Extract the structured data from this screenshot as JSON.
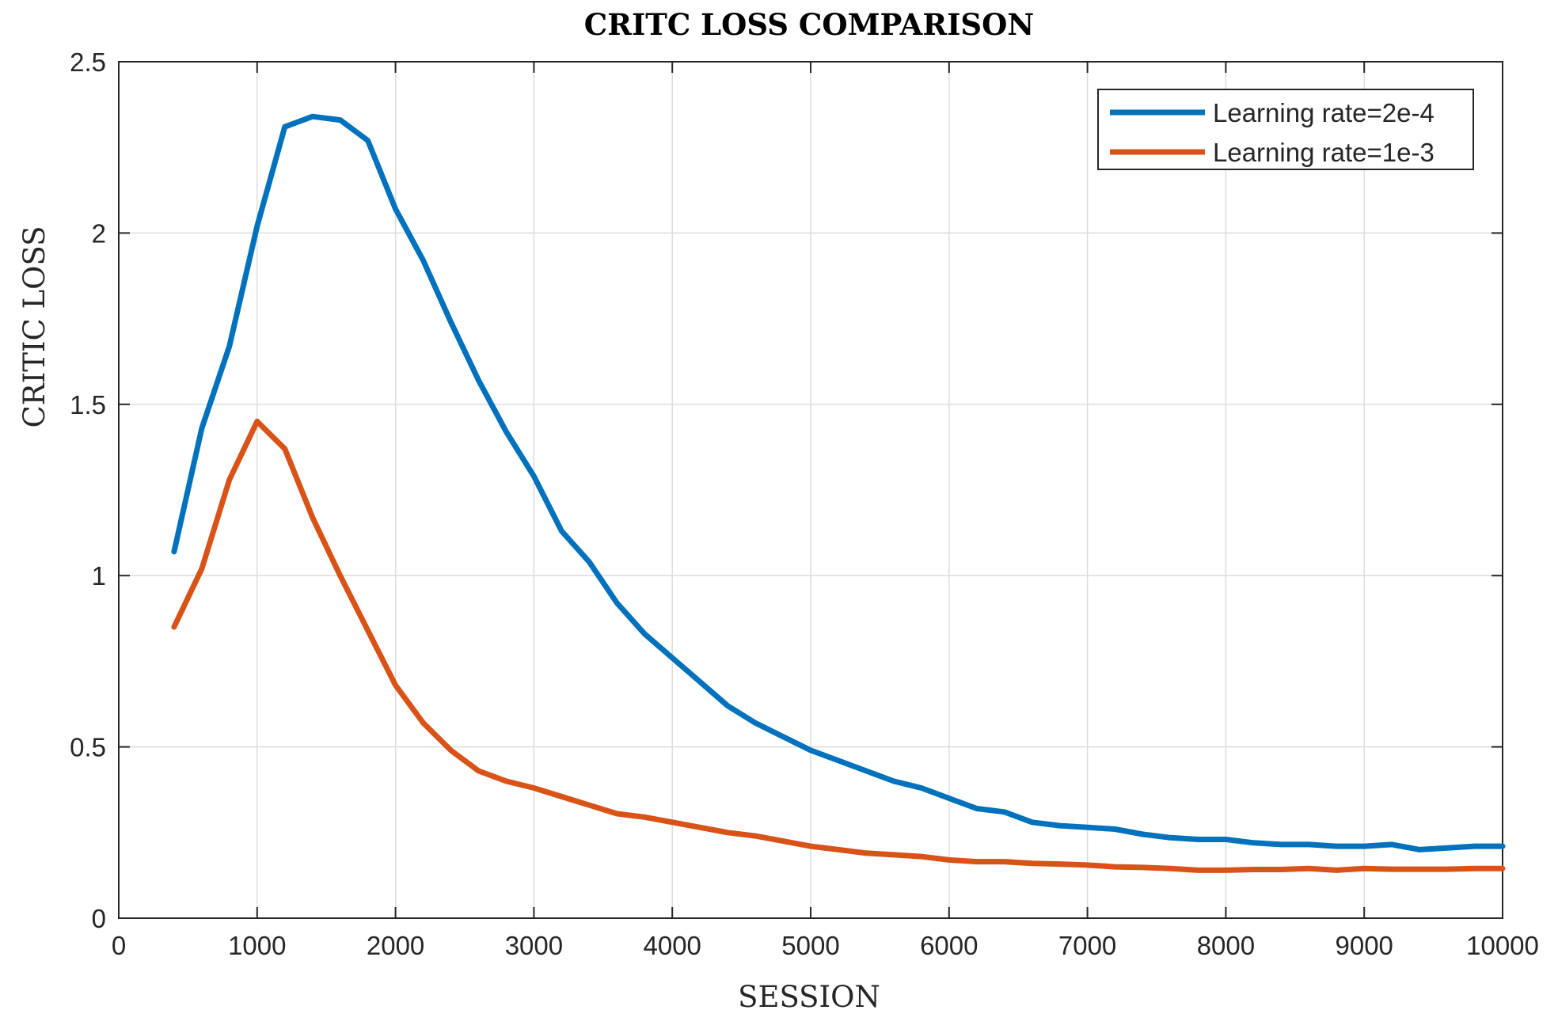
{
  "chart_data": {
    "type": "line",
    "title": "CRITC LOSS COMPARISON",
    "xlabel": "SESSION",
    "ylabel": "CRITIC LOSS",
    "xlim": [
      0,
      10000
    ],
    "ylim": [
      0,
      2.5
    ],
    "xticks": [
      0,
      1000,
      2000,
      3000,
      4000,
      5000,
      6000,
      7000,
      8000,
      9000,
      10000
    ],
    "yticks": [
      0,
      0.5,
      1,
      1.5,
      2,
      2.5
    ],
    "xtick_labels": [
      "0",
      "1000",
      "2000",
      "3000",
      "4000",
      "5000",
      "6000",
      "7000",
      "8000",
      "9000",
      "10000"
    ],
    "ytick_labels": [
      "0",
      "0.5",
      "1",
      "1.5",
      "2",
      "2.5"
    ],
    "grid": true,
    "legend_position": "top-right",
    "series": [
      {
        "name": "Learning rate=2e-4",
        "color": "#0072BD",
        "x": [
          400,
          600,
          800,
          1000,
          1200,
          1400,
          1600,
          1800,
          2000,
          2200,
          2400,
          2600,
          2800,
          3000,
          3200,
          3400,
          3600,
          3800,
          4000,
          4200,
          4400,
          4600,
          4800,
          5000,
          5200,
          5400,
          5600,
          5800,
          6000,
          6200,
          6400,
          6600,
          6800,
          7000,
          7200,
          7400,
          7600,
          7800,
          8000,
          8200,
          8400,
          8600,
          8800,
          9000,
          9200,
          9400,
          9600,
          9800,
          10000
        ],
        "y": [
          1.07,
          1.43,
          1.67,
          2.02,
          2.31,
          2.34,
          2.33,
          2.27,
          2.07,
          1.92,
          1.74,
          1.57,
          1.42,
          1.29,
          1.13,
          1.04,
          0.92,
          0.83,
          0.76,
          0.69,
          0.62,
          0.57,
          0.53,
          0.49,
          0.46,
          0.43,
          0.4,
          0.38,
          0.35,
          0.32,
          0.31,
          0.28,
          0.27,
          0.265,
          0.26,
          0.245,
          0.235,
          0.23,
          0.23,
          0.22,
          0.215,
          0.215,
          0.21,
          0.21,
          0.215,
          0.2,
          0.205,
          0.21,
          0.21
        ]
      },
      {
        "name": "Learning rate=1e-3",
        "color": "#D95319",
        "x": [
          400,
          600,
          800,
          1000,
          1200,
          1400,
          1600,
          1800,
          2000,
          2200,
          2400,
          2600,
          2800,
          3000,
          3200,
          3400,
          3600,
          3800,
          4000,
          4200,
          4400,
          4600,
          4800,
          5000,
          5200,
          5400,
          5600,
          5800,
          6000,
          6200,
          6400,
          6600,
          6800,
          7000,
          7200,
          7400,
          7600,
          7800,
          8000,
          8200,
          8400,
          8600,
          8800,
          9000,
          9200,
          9400,
          9600,
          9800,
          10000
        ],
        "y": [
          0.85,
          1.02,
          1.28,
          1.45,
          1.37,
          1.17,
          1.0,
          0.84,
          0.68,
          0.57,
          0.49,
          0.43,
          0.4,
          0.38,
          0.355,
          0.33,
          0.305,
          0.295,
          0.28,
          0.265,
          0.25,
          0.24,
          0.225,
          0.21,
          0.2,
          0.19,
          0.185,
          0.18,
          0.17,
          0.165,
          0.165,
          0.16,
          0.158,
          0.155,
          0.15,
          0.148,
          0.145,
          0.14,
          0.14,
          0.142,
          0.142,
          0.145,
          0.14,
          0.145,
          0.143,
          0.143,
          0.143,
          0.145,
          0.145
        ]
      }
    ]
  }
}
